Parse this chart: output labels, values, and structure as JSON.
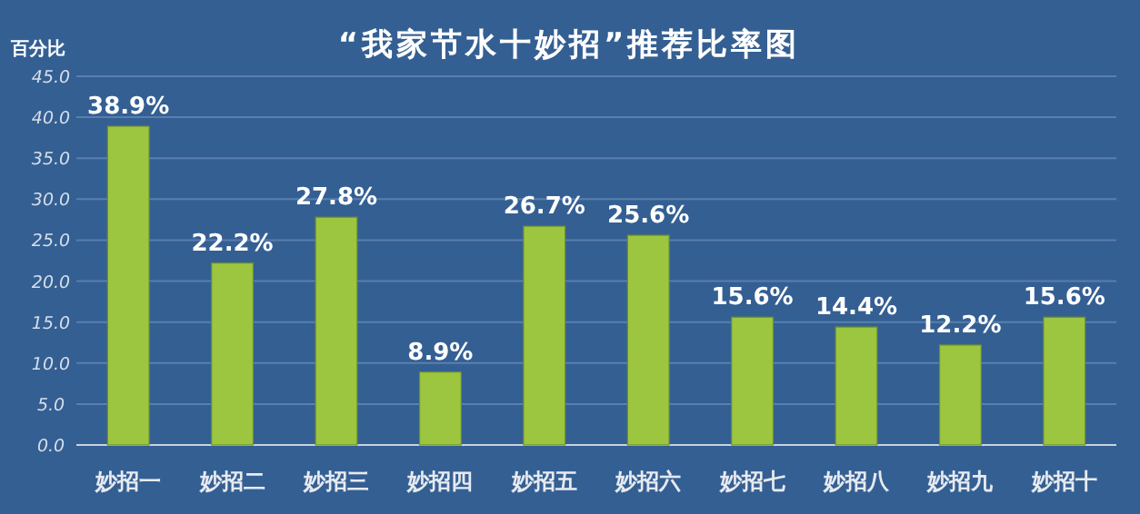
{
  "chart_data": {
    "type": "bar",
    "title": "“我家节水十妙招”推荐比率图",
    "ylabel": "百分比",
    "categories": [
      "妙招一",
      "妙招二",
      "妙招三",
      "妙招四",
      "妙招五",
      "妙招六",
      "妙招七",
      "妙招八",
      "妙招九",
      "妙招十"
    ],
    "values": [
      38.9,
      22.2,
      27.8,
      8.9,
      26.7,
      25.6,
      15.6,
      14.4,
      12.2,
      15.6
    ],
    "value_labels": [
      "38.9%",
      "22.2%",
      "27.8%",
      "8.9%",
      "26.7%",
      "25.6%",
      "15.6%",
      "14.4%",
      "12.2%",
      "15.6%"
    ],
    "color": "#9cc640",
    "ylim": [
      0,
      45
    ],
    "yticks": [
      {
        "value": 0,
        "label": "0.0"
      },
      {
        "value": 5,
        "label": "5.0"
      },
      {
        "value": 10,
        "label": "10.0"
      },
      {
        "value": 15,
        "label": "15.0"
      },
      {
        "value": 20,
        "label": "20.0"
      },
      {
        "value": 25,
        "label": "25.0"
      },
      {
        "value": 30,
        "label": "30.0"
      },
      {
        "value": 35,
        "label": "35.0"
      },
      {
        "value": 40,
        "label": "40.0"
      },
      {
        "value": 45,
        "label": "45.0"
      }
    ],
    "grid": "y"
  }
}
